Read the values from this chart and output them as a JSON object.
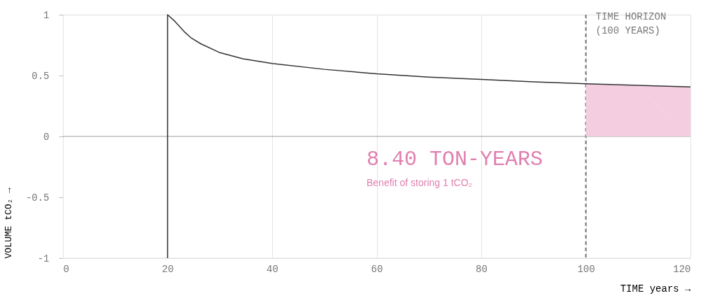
{
  "chart_data": {
    "type": "line",
    "xlabel": "TIME years →",
    "ylabel": "VOLUME tCO₂ →",
    "xlim": [
      0,
      120
    ],
    "xticks": [
      0,
      20,
      40,
      60,
      80,
      100,
      120
    ],
    "ylim": [
      -1,
      1
    ],
    "yticks": [
      -1,
      -0.5,
      0,
      0.5,
      1
    ],
    "grid": "x",
    "series": [
      {
        "color": "#333333",
        "x": [
          20,
          20,
          21.4,
          23.2,
          24.5,
          26.4,
          29.9,
          34.4,
          40,
          50,
          60,
          70,
          80,
          90,
          100,
          110,
          120
        ],
        "values": [
          -1,
          1,
          0.946,
          0.86,
          0.81,
          0.76,
          0.69,
          0.638,
          0.599,
          0.551,
          0.514,
          0.487,
          0.468,
          0.448,
          0.432,
          0.419,
          0.406
        ]
      },
      {
        "type": "area",
        "color": "#f4cde0",
        "x": [
          100,
          110,
          120
        ],
        "values": [
          0.432,
          0.419,
          0.406
        ]
      }
    ],
    "ref_lines": [
      {
        "axis": "x",
        "value": 100,
        "label": "TIME HORIZON\n(100 YEARS)",
        "color": "#777777",
        "line_style": "dashed"
      },
      {
        "axis": "y",
        "value": 0,
        "color": "#999999",
        "line_style": "solid"
      }
    ],
    "annotations": [
      "8.40 TON-YEARS",
      "Benefit of storing 1 tCO₂"
    ]
  }
}
